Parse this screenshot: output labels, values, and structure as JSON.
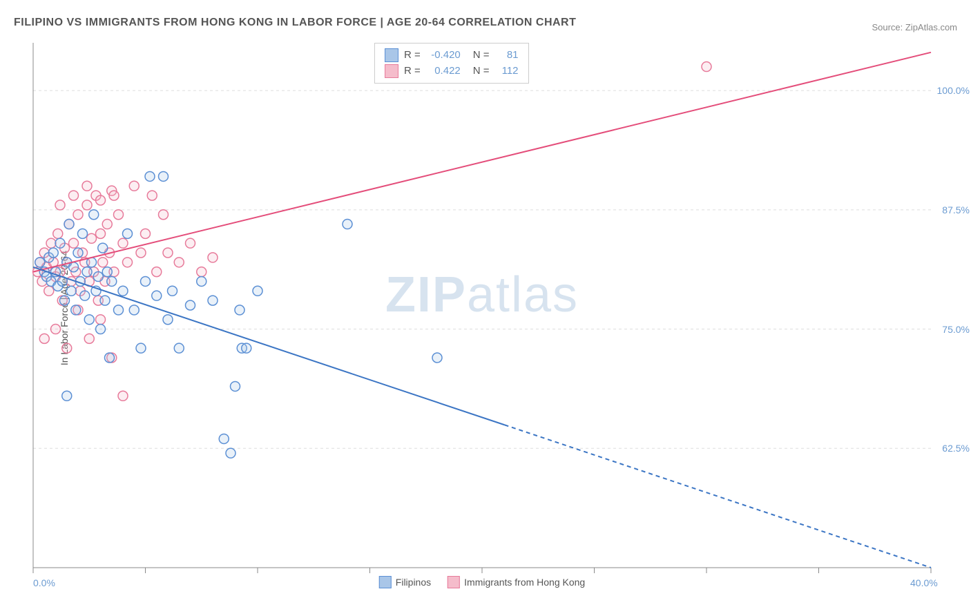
{
  "title": "FILIPINO VS IMMIGRANTS FROM HONG KONG IN LABOR FORCE | AGE 20-64 CORRELATION CHART",
  "source_label": "Source: ZipAtlas.com",
  "watermark_zip": "ZIP",
  "watermark_atlas": "atlas",
  "chart": {
    "type": "scatter",
    "y_axis_label": "In Labor Force | Age 20-64",
    "x_domain": [
      0,
      40
    ],
    "y_domain": [
      50,
      105
    ],
    "x_ticks": [
      0,
      5,
      10,
      15,
      20,
      25,
      30,
      35,
      40
    ],
    "x_tick_labels": {
      "0": "0.0%",
      "40": "40.0%"
    },
    "y_ticks": [
      62.5,
      75,
      87.5,
      100
    ],
    "y_tick_labels": {
      "62.5": "62.5%",
      "75": "75.0%",
      "87.5": "87.5%",
      "100": "100.0%"
    },
    "background_color": "#ffffff",
    "grid_color": "#dddddd",
    "axis_color": "#888888",
    "label_color": "#555555",
    "tick_label_color": "#6b9bd1",
    "marker_radius": 7,
    "marker_stroke_width": 1.5,
    "marker_fill_opacity": 0.25,
    "line_width": 2,
    "series": {
      "filipinos": {
        "label": "Filipinos",
        "color_stroke": "#5b8fd4",
        "color_fill": "#a9c6e8",
        "line_color": "#3b75c4",
        "R": "-0.420",
        "N": "81",
        "line": {
          "x1": 0,
          "y1": 81.5,
          "x2": 40,
          "y2": 50,
          "solid_end_x": 21
        },
        "points": [
          [
            0.3,
            82
          ],
          [
            0.5,
            81
          ],
          [
            0.6,
            80.5
          ],
          [
            0.7,
            82.5
          ],
          [
            0.8,
            80
          ],
          [
            0.9,
            83
          ],
          [
            1.0,
            81
          ],
          [
            1.1,
            79.5
          ],
          [
            1.2,
            84
          ],
          [
            1.3,
            80
          ],
          [
            1.4,
            78
          ],
          [
            1.5,
            82
          ],
          [
            1.6,
            86
          ],
          [
            1.7,
            79
          ],
          [
            1.8,
            81.5
          ],
          [
            1.9,
            77
          ],
          [
            2.0,
            83
          ],
          [
            2.1,
            80
          ],
          [
            2.2,
            85
          ],
          [
            2.3,
            78.5
          ],
          [
            2.4,
            81
          ],
          [
            2.5,
            76
          ],
          [
            2.6,
            82
          ],
          [
            2.7,
            87
          ],
          [
            2.8,
            79
          ],
          [
            2.9,
            80.5
          ],
          [
            3.0,
            75
          ],
          [
            3.1,
            83.5
          ],
          [
            3.2,
            78
          ],
          [
            3.3,
            81
          ],
          [
            3.4,
            72
          ],
          [
            3.5,
            80
          ],
          [
            3.8,
            77
          ],
          [
            4,
            79
          ],
          [
            4.2,
            85
          ],
          [
            4.5,
            77
          ],
          [
            4.8,
            73
          ],
          [
            5,
            80
          ],
          [
            5.2,
            91
          ],
          [
            5.5,
            78.5
          ],
          [
            5.8,
            91
          ],
          [
            6,
            76
          ],
          [
            6.2,
            79
          ],
          [
            6.5,
            73
          ],
          [
            7,
            77.5
          ],
          [
            7.5,
            80
          ],
          [
            8,
            78
          ],
          [
            8.5,
            63.5
          ],
          [
            8.8,
            62
          ],
          [
            9,
            69
          ],
          [
            9.2,
            77
          ],
          [
            9.3,
            73
          ],
          [
            9.5,
            73
          ],
          [
            10,
            79
          ],
          [
            14,
            86
          ],
          [
            18,
            72
          ],
          [
            1.5,
            68
          ]
        ]
      },
      "hongkong": {
        "label": "Immigrants from Hong Kong",
        "color_stroke": "#e77a9a",
        "color_fill": "#f5bccb",
        "line_color": "#e44d7a",
        "R": "0.422",
        "N": "112",
        "line": {
          "x1": 0,
          "y1": 81,
          "x2": 40,
          "y2": 104
        },
        "points": [
          [
            0.2,
            81
          ],
          [
            0.3,
            82
          ],
          [
            0.4,
            80
          ],
          [
            0.5,
            83
          ],
          [
            0.6,
            81.5
          ],
          [
            0.7,
            79
          ],
          [
            0.8,
            84
          ],
          [
            0.9,
            82
          ],
          [
            1.0,
            80.5
          ],
          [
            1.1,
            85
          ],
          [
            1.2,
            81
          ],
          [
            1.3,
            78
          ],
          [
            1.4,
            83.5
          ],
          [
            1.5,
            82
          ],
          [
            1.6,
            86
          ],
          [
            1.7,
            80
          ],
          [
            1.8,
            84
          ],
          [
            1.9,
            81
          ],
          [
            2.0,
            87
          ],
          [
            2.1,
            79
          ],
          [
            2.2,
            83
          ],
          [
            2.3,
            82
          ],
          [
            2.4,
            88
          ],
          [
            2.5,
            80
          ],
          [
            2.6,
            84.5
          ],
          [
            2.7,
            81
          ],
          [
            2.8,
            89
          ],
          [
            2.9,
            78
          ],
          [
            3.0,
            85
          ],
          [
            3.1,
            82
          ],
          [
            3.2,
            80
          ],
          [
            3.3,
            86
          ],
          [
            3.4,
            83
          ],
          [
            3.5,
            89.5
          ],
          [
            3.6,
            81
          ],
          [
            3.8,
            87
          ],
          [
            4.0,
            84
          ],
          [
            4.2,
            82
          ],
          [
            4.5,
            90
          ],
          [
            4.8,
            83
          ],
          [
            5.0,
            85
          ],
          [
            5.3,
            89
          ],
          [
            5.5,
            81
          ],
          [
            5.8,
            87
          ],
          [
            6.0,
            83
          ],
          [
            6.5,
            82
          ],
          [
            7.0,
            84
          ],
          [
            7.5,
            81
          ],
          [
            8.0,
            82.5
          ],
          [
            0.5,
            74
          ],
          [
            1.0,
            75
          ],
          [
            1.5,
            73
          ],
          [
            2.0,
            77
          ],
          [
            2.5,
            74
          ],
          [
            3.0,
            76
          ],
          [
            3.5,
            72
          ],
          [
            4.0,
            68
          ],
          [
            1.2,
            88
          ],
          [
            1.8,
            89
          ],
          [
            2.4,
            90
          ],
          [
            3.0,
            88.5
          ],
          [
            3.6,
            89
          ],
          [
            30,
            102.5
          ]
        ]
      }
    }
  }
}
